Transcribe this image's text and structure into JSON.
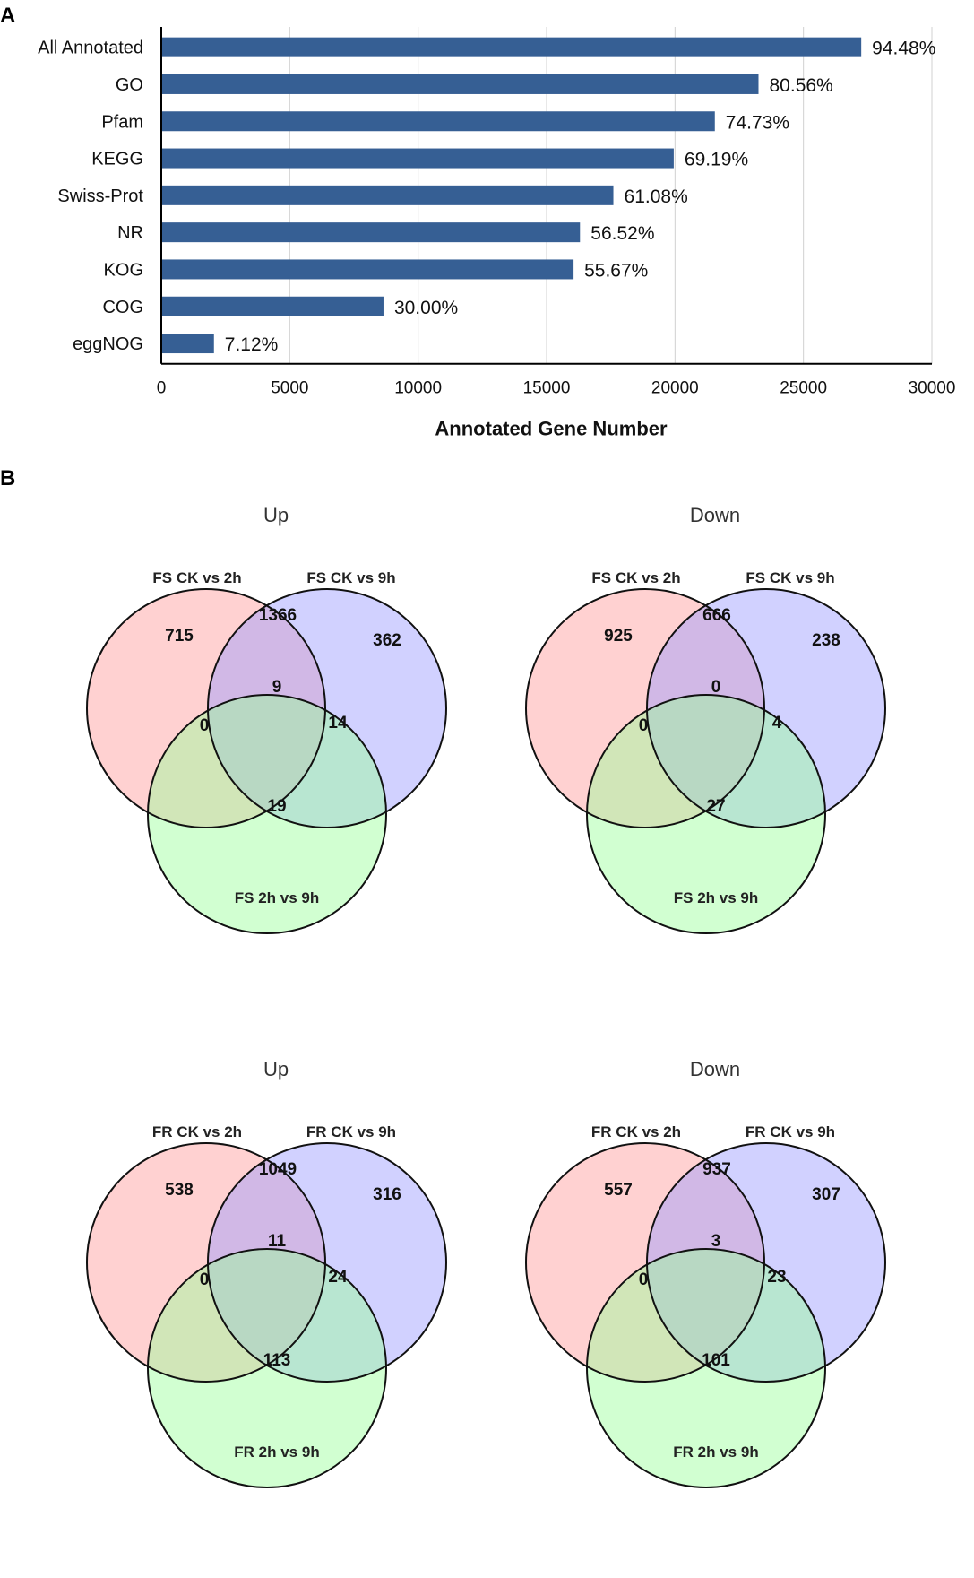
{
  "panels": {
    "a": "A",
    "b": "B"
  },
  "chart_data": [
    {
      "type": "bar",
      "orientation": "horizontal",
      "categories": [
        "All Annotated",
        "GO",
        "Pfam",
        "KEGG",
        "Swiss-Prot",
        "NR",
        "KOG",
        "COG",
        "eggNOG"
      ],
      "values": [
        27250,
        23250,
        21550,
        19950,
        17600,
        16300,
        16050,
        8650,
        2050
      ],
      "data_labels": [
        "94.48%",
        "80.56%",
        "74.73%",
        "69.19%",
        "61.08%",
        "56.52%",
        "55.67%",
        "30.00%",
        "7.12%"
      ],
      "xlabel": "Annotated Gene Number",
      "ylabel": "",
      "xlim": [
        0,
        30000
      ],
      "xticks": [
        0,
        5000,
        10000,
        15000,
        20000,
        25000,
        30000
      ],
      "xtick_labels": [
        "0",
        "5000",
        "10000",
        "15000",
        "20000",
        "25000",
        "30000"
      ],
      "grid": "vertical",
      "bar_color": "#365f94"
    },
    {
      "type": "venn",
      "title": "Up",
      "sets": [
        "FS CK vs 2h",
        "FS CK vs 9h",
        "FS 2h vs 9h"
      ],
      "regions": {
        "a_only": "715",
        "b_only": "362",
        "c_only": "19",
        "ab": "1366",
        "ac": "0",
        "bc": "14",
        "abc": "9"
      }
    },
    {
      "type": "venn",
      "title": "Down",
      "sets": [
        "FS CK vs 2h",
        "FS CK vs 9h",
        "FS 2h vs 9h"
      ],
      "regions": {
        "a_only": "925",
        "b_only": "238",
        "c_only": "27",
        "ab": "666",
        "ac": "0",
        "bc": "4",
        "abc": "0"
      }
    },
    {
      "type": "venn",
      "title": "Up",
      "sets": [
        "FR CK vs 2h",
        "FR CK vs 9h",
        "FR 2h vs 9h"
      ],
      "regions": {
        "a_only": "538",
        "b_only": "316",
        "c_only": "113",
        "ab": "1049",
        "ac": "0",
        "bc": "24",
        "abc": "11"
      }
    },
    {
      "type": "venn",
      "title": "Down",
      "sets": [
        "FR CK vs 2h",
        "FR CK vs 9h",
        "FR 2h vs 9h"
      ],
      "regions": {
        "a_only": "557",
        "b_only": "307",
        "c_only": "101",
        "ab": "937",
        "ac": "0",
        "bc": "23",
        "abc": "3"
      }
    }
  ],
  "colors": {
    "set_a": "#ff9999",
    "set_b": "#9999ff",
    "set_c": "#99ff99",
    "outline": "#111111"
  }
}
